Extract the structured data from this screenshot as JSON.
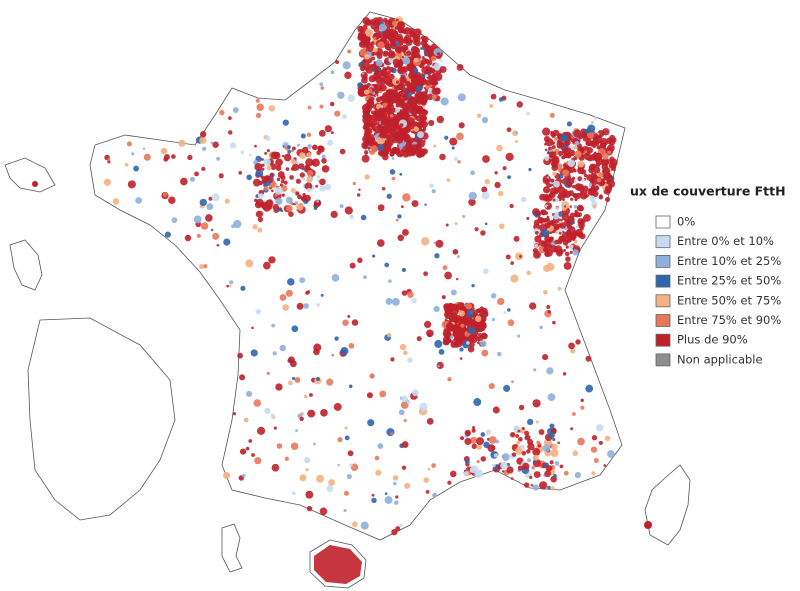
{
  "legend": {
    "title": "ux de couverture FttH",
    "items": [
      {
        "label": "0%",
        "color": "#ffffff"
      },
      {
        "label": "Entre 0% et 10%",
        "color": "#c6dbf2"
      },
      {
        "label": "Entre 10% et 25%",
        "color": "#8fb0dc"
      },
      {
        "label": "Entre 25% et 50%",
        "color": "#2e66ad"
      },
      {
        "label": "Entre 50% et 75%",
        "color": "#f4b183"
      },
      {
        "label": "Entre 75% et 90%",
        "color": "#e8775a"
      },
      {
        "label": "Plus de 90%",
        "color": "#c0202a"
      },
      {
        "label": "Non applicable",
        "color": "#8c8c8c"
      }
    ]
  }
}
